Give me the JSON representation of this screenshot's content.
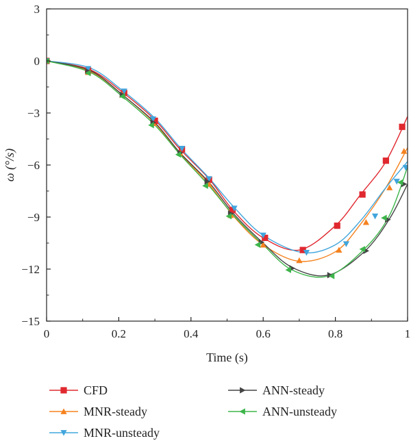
{
  "chart_data": {
    "type": "line",
    "xlabel": "Time (s)",
    "ylabel": "ω (°/s)",
    "xlim": [
      0,
      1
    ],
    "ylim": [
      -15,
      3
    ],
    "x_ticks": [
      "0",
      "0.2",
      "0.4",
      "0.6",
      "0.8",
      "1"
    ],
    "y_ticks": [
      "3",
      "0",
      "−3",
      "−6",
      "−9",
      "−12",
      "−15"
    ],
    "grid": false,
    "legend_position": "bottom",
    "series": [
      {
        "name": "CFD",
        "color": "#e0282f",
        "marker": "square",
        "x": [
          0,
          0.12,
          0.21,
          0.3,
          0.37,
          0.45,
          0.52,
          0.6,
          0.7,
          0.8,
          0.87,
          0.94,
          1.0
        ],
        "y": [
          0,
          -0.5,
          -1.8,
          -3.4,
          -5.1,
          -6.8,
          -8.7,
          -10.2,
          -10.9,
          -9.5,
          -7.7,
          -5.8,
          -3.2
        ],
        "marker_x": [
          0,
          0.115,
          0.215,
          0.3,
          0.375,
          0.45,
          0.515,
          0.605,
          0.71,
          0.805,
          0.875,
          0.94,
          0.985
        ],
        "marker_y": [
          0,
          -0.55,
          -1.85,
          -3.45,
          -5.1,
          -6.85,
          -8.6,
          -10.2,
          -10.9,
          -9.5,
          -7.7,
          -5.75,
          -3.8
        ]
      },
      {
        "name": "MNR-steady",
        "color": "#f5821f",
        "marker": "triangle-up",
        "x": [
          0,
          0.12,
          0.21,
          0.3,
          0.37,
          0.45,
          0.52,
          0.6,
          0.7,
          0.8,
          0.87,
          0.94,
          1.0
        ],
        "y": [
          0,
          -0.6,
          -1.95,
          -3.6,
          -5.35,
          -7.1,
          -9.0,
          -10.6,
          -11.55,
          -11.0,
          -9.4,
          -7.3,
          -5.0
        ],
        "marker_x": [
          0,
          0.115,
          0.21,
          0.295,
          0.37,
          0.45,
          0.51,
          0.6,
          0.7,
          0.81,
          0.885,
          0.95,
          0.99
        ],
        "marker_y": [
          0,
          -0.65,
          -1.95,
          -3.6,
          -5.3,
          -7.1,
          -8.9,
          -10.6,
          -11.5,
          -10.9,
          -9.3,
          -7.3,
          -5.2
        ]
      },
      {
        "name": "MNR-unsteady",
        "color": "#41a5dc",
        "marker": "triangle-down",
        "x": [
          0,
          0.12,
          0.21,
          0.3,
          0.37,
          0.45,
          0.52,
          0.6,
          0.71,
          0.8,
          0.87,
          0.94,
          1.0
        ],
        "y": [
          0,
          -0.4,
          -1.7,
          -3.3,
          -5.0,
          -6.75,
          -8.45,
          -10.05,
          -11.05,
          -10.6,
          -9.2,
          -7.3,
          -5.8
        ],
        "marker_x": [
          0,
          0.115,
          0.215,
          0.295,
          0.375,
          0.45,
          0.52,
          0.6,
          0.72,
          0.83,
          0.91,
          0.97,
          0.995
        ],
        "marker_y": [
          0,
          -0.45,
          -1.75,
          -3.35,
          -5.05,
          -6.8,
          -8.5,
          -10.05,
          -11.05,
          -10.55,
          -8.95,
          -6.95,
          -6.15
        ]
      },
      {
        "name": "ANN-steady",
        "color": "#444444",
        "marker": "triangle-right",
        "x": [
          0,
          0.12,
          0.21,
          0.3,
          0.37,
          0.45,
          0.52,
          0.6,
          0.68,
          0.78,
          0.88,
          0.95,
          1.0
        ],
        "y": [
          0,
          -0.55,
          -1.95,
          -3.55,
          -5.3,
          -7.0,
          -8.85,
          -10.5,
          -11.9,
          -12.35,
          -11.0,
          -9.1,
          -7.1
        ],
        "marker_x": [
          0,
          0.115,
          0.21,
          0.295,
          0.37,
          0.445,
          0.51,
          0.595,
          0.68,
          0.785,
          0.885,
          0.945,
          0.99
        ],
        "marker_y": [
          0,
          -0.6,
          -1.95,
          -3.55,
          -5.3,
          -6.95,
          -8.8,
          -10.45,
          -11.95,
          -12.35,
          -10.95,
          -9.15,
          -7.1
        ]
      },
      {
        "name": "ANN-unsteady",
        "color": "#3db54a",
        "marker": "triangle-left",
        "x": [
          0,
          0.12,
          0.21,
          0.3,
          0.37,
          0.45,
          0.52,
          0.6,
          0.68,
          0.78,
          0.88,
          0.95,
          1.0
        ],
        "y": [
          0,
          -0.65,
          -2.05,
          -3.7,
          -5.4,
          -7.2,
          -8.95,
          -10.6,
          -12.05,
          -12.4,
          -10.85,
          -8.9,
          -6.1
        ],
        "marker_x": [
          0,
          0.115,
          0.21,
          0.29,
          0.365,
          0.44,
          0.505,
          0.585,
          0.67,
          0.79,
          0.875,
          0.935,
          0.98
        ],
        "marker_y": [
          0,
          -0.7,
          -2.05,
          -3.7,
          -5.4,
          -7.2,
          -8.95,
          -10.6,
          -12.05,
          -12.4,
          -10.85,
          -9.05,
          -7.0
        ]
      }
    ]
  }
}
